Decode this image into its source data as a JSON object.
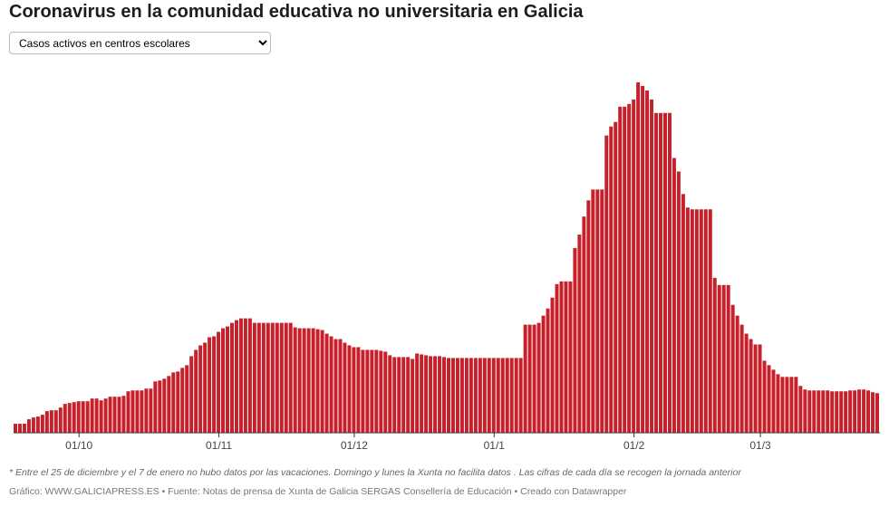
{
  "chart_data": {
    "type": "bar",
    "title": "Coronavirus en la comunidad educativa no universitaria en Galicia",
    "dropdown": "Casos activos en centros escolares",
    "note": "* Entre el 25 de diciembre y el 7 de enero no hubo datos por las vacaciones. Domingo y lunes la Xunta no facilita datos . Las cifras de cada día se recogen la jornada anterior",
    "credit": "Gráfico: WWW.GALICIAPRESS.ES • Fuente: Notas de prensa de Xunta de Galicia SERGAS Consellería de Educación • Creado con Datawrapper",
    "color": "#c8202a",
    "ylim": [
      0,
      400
    ],
    "categories": [
      null,
      null,
      null,
      null,
      null,
      null,
      null,
      null,
      null,
      null,
      null,
      null,
      null,
      null,
      "01/10",
      null,
      null,
      null,
      null,
      null,
      null,
      null,
      null,
      null,
      null,
      null,
      null,
      null,
      null,
      null,
      null,
      null,
      null,
      null,
      null,
      null,
      null,
      null,
      null,
      null,
      null,
      null,
      null,
      null,
      null,
      "01/11",
      null,
      null,
      null,
      null,
      null,
      null,
      null,
      null,
      null,
      null,
      null,
      null,
      null,
      null,
      null,
      null,
      null,
      null,
      null,
      null,
      null,
      null,
      null,
      null,
      null,
      null,
      null,
      null,
      null,
      "01/12",
      null,
      null,
      null,
      null,
      null,
      null,
      null,
      null,
      null,
      null,
      null,
      null,
      null,
      null,
      null,
      null,
      null,
      null,
      null,
      null,
      null,
      null,
      null,
      null,
      null,
      null,
      null,
      null,
      null,
      null,
      "01/1",
      null,
      null,
      null,
      null,
      null,
      null,
      null,
      null,
      null,
      null,
      null,
      null,
      null,
      null,
      null,
      null,
      null,
      null,
      null,
      null,
      null,
      null,
      null,
      null,
      null,
      null,
      null,
      null,
      null,
      null,
      "01/2",
      null,
      null,
      null,
      null,
      null,
      null,
      null,
      null,
      null,
      null,
      null,
      null,
      null,
      null,
      null,
      null,
      null,
      null,
      null,
      null,
      null,
      null,
      null,
      null,
      null,
      null,
      null,
      "01/3",
      null,
      null,
      null,
      null,
      null,
      null,
      null,
      null,
      null,
      null,
      null,
      null,
      null,
      null,
      null,
      null,
      null,
      null,
      null,
      null,
      null,
      null,
      null,
      null,
      null,
      null
    ],
    "values": [
      10,
      10,
      10,
      15,
      17,
      18,
      20,
      24,
      25,
      25,
      28,
      32,
      33,
      34,
      35,
      35,
      35,
      38,
      38,
      36,
      38,
      40,
      40,
      40,
      41,
      46,
      47,
      47,
      47,
      49,
      49,
      57,
      58,
      60,
      63,
      67,
      68,
      72,
      75,
      85,
      92,
      97,
      100,
      106,
      107,
      112,
      116,
      118,
      122,
      125,
      127,
      127,
      127,
      122,
      122,
      122,
      122,
      122,
      122,
      122,
      122,
      122,
      117,
      116,
      116,
      116,
      116,
      115,
      114,
      110,
      107,
      104,
      104,
      100,
      97,
      95,
      95,
      92,
      92,
      92,
      92,
      91,
      90,
      86,
      84,
      84,
      84,
      84,
      82,
      88,
      87,
      86,
      85,
      85,
      85,
      84,
      83,
      83,
      83,
      83,
      83,
      83,
      83,
      83,
      83,
      83,
      83,
      83,
      83,
      83,
      83,
      83,
      83,
      120,
      120,
      120,
      122,
      130,
      138,
      150,
      165,
      168,
      168,
      168,
      205,
      220,
      240,
      258,
      270,
      270,
      270,
      330,
      340,
      345,
      362,
      362,
      365,
      370,
      389,
      385,
      380,
      370,
      355,
      355,
      355,
      355,
      305,
      290,
      265,
      250,
      248,
      248,
      248,
      248,
      248,
      172,
      164,
      164,
      164,
      142,
      130,
      120,
      110,
      104,
      98,
      98,
      80,
      75,
      70,
      65,
      62,
      62,
      62,
      62,
      52,
      48,
      47,
      47,
      47,
      47,
      47,
      46,
      46,
      46,
      46,
      47,
      47,
      48,
      48,
      47,
      45,
      44
    ]
  }
}
